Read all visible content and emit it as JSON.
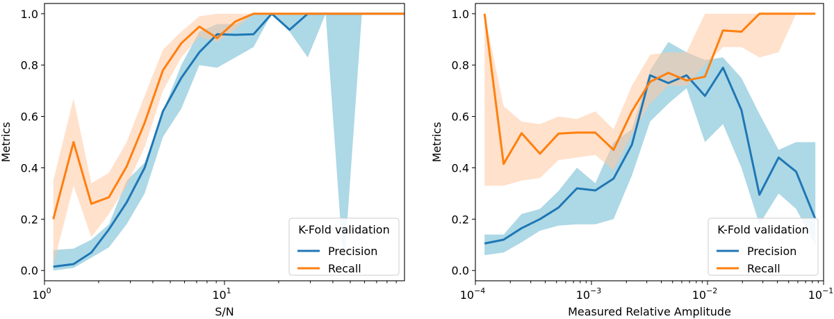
{
  "chart_data": [
    {
      "type": "line",
      "xscale": "log",
      "xlabel": "S/N",
      "ylabel": "Metrics",
      "xlim": [
        1,
        100
      ],
      "ylim": [
        -0.04,
        1.04
      ],
      "xticks": [
        {
          "value": 1,
          "base": "10",
          "exp": "0"
        },
        {
          "value": 10,
          "base": "10",
          "exp": "1"
        }
      ],
      "yticks": [
        "0.0",
        "0.2",
        "0.4",
        "0.6",
        "0.8",
        "1.0"
      ],
      "legend": {
        "title": "K-Fold validation",
        "loc": "lower-right"
      },
      "series": [
        {
          "name": "Precision",
          "color": "#1f77b4",
          "band_color": "#add8e6",
          "band_opacity": 1.0,
          "x": [
            1.12,
            1.45,
            1.82,
            2.28,
            2.86,
            3.6,
            4.55,
            5.75,
            7.25,
            9.1,
            11.5,
            14.5,
            18.3,
            23,
            29,
            36.5,
            46,
            58,
            73,
            100
          ],
          "values": [
            0.015,
            0.025,
            0.07,
            0.16,
            0.265,
            0.4,
            0.62,
            0.75,
            0.85,
            0.92,
            0.918,
            0.92,
            1.0,
            0.938,
            1.0,
            1.0,
            1.0,
            1.0,
            1.0,
            1.0
          ],
          "lower": [
            0.0,
            0.01,
            0.05,
            0.09,
            0.18,
            0.3,
            0.52,
            0.63,
            0.8,
            0.79,
            0.83,
            0.87,
            1.0,
            0.93,
            0.83,
            1.0,
            0.0,
            1.0,
            1.0,
            1.0
          ],
          "upper": [
            0.08,
            0.085,
            0.12,
            0.18,
            0.35,
            0.42,
            0.62,
            0.8,
            0.93,
            0.96,
            0.96,
            1.0,
            1.0,
            1.0,
            1.0,
            1.0,
            1.0,
            1.0,
            1.0,
            1.0
          ]
        },
        {
          "name": "Recall",
          "color": "#ff7f0e",
          "band_color": "#ffc9a3",
          "band_opacity": 0.55,
          "x": [
            1.12,
            1.45,
            1.82,
            2.28,
            2.86,
            3.6,
            4.55,
            5.75,
            7.25,
            9.1,
            11.5,
            14.5,
            18.3,
            23,
            29,
            36.5,
            46,
            58,
            73,
            100
          ],
          "values": [
            0.2,
            0.5,
            0.26,
            0.285,
            0.405,
            0.575,
            0.78,
            0.885,
            0.95,
            0.905,
            0.97,
            1.0,
            1.0,
            1.0,
            1.0,
            1.0,
            1.0,
            1.0,
            1.0,
            1.0
          ],
          "lower": [
            0.02,
            0.33,
            0.13,
            0.22,
            0.33,
            0.48,
            0.7,
            0.83,
            0.91,
            0.89,
            0.94,
            1.0,
            1.0,
            1.0,
            1.0,
            1.0,
            1.0,
            1.0,
            1.0,
            1.0
          ],
          "upper": [
            0.35,
            0.67,
            0.34,
            0.38,
            0.5,
            0.68,
            0.86,
            0.93,
            0.99,
            1.0,
            1.0,
            1.0,
            1.0,
            1.0,
            1.0,
            1.0,
            1.0,
            1.0,
            1.0,
            1.0
          ]
        }
      ]
    },
    {
      "type": "line",
      "xscale": "log",
      "xlabel": "Measured Relative Amplitude",
      "ylabel": "Metrics",
      "xlim": [
        0.0001,
        0.1
      ],
      "ylim": [
        -0.04,
        1.04
      ],
      "xticks": [
        {
          "value": 0.0001,
          "base": "10",
          "exp": "−4"
        },
        {
          "value": 0.001,
          "base": "10",
          "exp": "−3"
        },
        {
          "value": 0.01,
          "base": "10",
          "exp": "−2"
        },
        {
          "value": 0.1,
          "base": "10",
          "exp": "−1"
        }
      ],
      "yticks": [
        "0.0",
        "0.2",
        "0.4",
        "0.6",
        "0.8",
        "1.0"
      ],
      "legend": {
        "title": "K-Fold validation",
        "loc": "lower-right"
      },
      "series": [
        {
          "name": "Precision",
          "color": "#1f77b4",
          "band_color": "#add8e6",
          "band_opacity": 1.0,
          "x": [
            0.00012,
            0.000175,
            0.00025,
            0.00036,
            0.00052,
            0.00075,
            0.00108,
            0.00155,
            0.00223,
            0.0032,
            0.0046,
            0.0066,
            0.0095,
            0.0136,
            0.0196,
            0.028,
            0.041,
            0.058,
            0.085
          ],
          "values": [
            0.105,
            0.12,
            0.165,
            0.2,
            0.245,
            0.32,
            0.312,
            0.358,
            0.49,
            0.76,
            0.73,
            0.76,
            0.68,
            0.79,
            0.625,
            0.295,
            0.44,
            0.385,
            0.2
          ],
          "lower": [
            0.06,
            0.07,
            0.11,
            0.155,
            0.175,
            0.18,
            0.18,
            0.2,
            0.37,
            0.58,
            0.65,
            0.71,
            0.5,
            0.57,
            0.4,
            0.18,
            0.3,
            0.24,
            0.1
          ],
          "upper": [
            0.14,
            0.14,
            0.22,
            0.24,
            0.31,
            0.4,
            0.34,
            0.5,
            0.55,
            0.78,
            0.89,
            0.85,
            0.82,
            0.83,
            0.75,
            0.61,
            0.47,
            0.5,
            0.5
          ]
        },
        {
          "name": "Recall",
          "color": "#ff7f0e",
          "band_color": "#ffc9a3",
          "band_opacity": 0.55,
          "x": [
            0.00012,
            0.000175,
            0.00025,
            0.00036,
            0.00052,
            0.00075,
            0.00108,
            0.00155,
            0.00223,
            0.0032,
            0.0046,
            0.0066,
            0.0095,
            0.0136,
            0.0196,
            0.028,
            0.041,
            0.058,
            0.085
          ],
          "values": [
            1.0,
            0.415,
            0.535,
            0.455,
            0.533,
            0.537,
            0.537,
            0.47,
            0.62,
            0.735,
            0.77,
            0.74,
            0.755,
            0.935,
            0.93,
            1.0,
            1.0,
            1.0,
            1.0
          ],
          "lower": [
            0.33,
            0.33,
            0.35,
            0.36,
            0.43,
            0.44,
            0.45,
            0.39,
            0.53,
            0.65,
            0.72,
            0.72,
            0.8,
            0.87,
            0.87,
            0.83,
            0.85,
            1.0,
            1.0
          ],
          "upper": [
            1.0,
            0.64,
            0.58,
            0.57,
            0.6,
            0.59,
            0.62,
            0.55,
            0.72,
            0.84,
            0.85,
            0.85,
            1.0,
            1.0,
            1.0,
            1.0,
            1.0,
            1.0,
            1.0
          ]
        }
      ]
    }
  ]
}
